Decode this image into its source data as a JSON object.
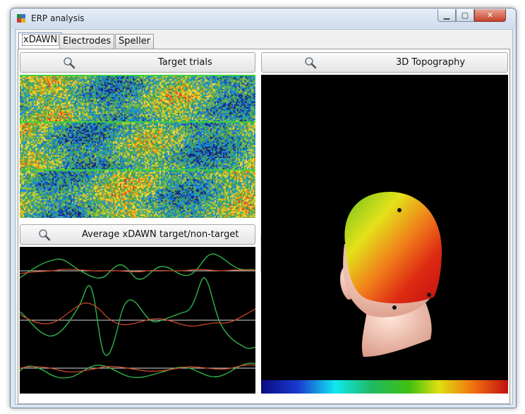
{
  "window": {
    "title": "ERP analysis"
  },
  "tabs": [
    {
      "label": "xDAWN",
      "active": true
    },
    {
      "label": "Electrodes",
      "active": false
    },
    {
      "label": "Speller",
      "active": false
    }
  ],
  "panels": {
    "target_trials": {
      "label": "Target trials",
      "icon": "magnifier-icon"
    },
    "average_xdawn": {
      "label": "Average xDAWN target/non-target",
      "icon": "magnifier-icon"
    },
    "topography": {
      "label": "3D Topography",
      "icon": "magnifier-icon"
    }
  },
  "colors": {
    "target_curve": "#2fb34a",
    "nontarget_curve": "#d24a2a",
    "baseline": "#d9d9d9",
    "panel_bg": "#000000"
  }
}
